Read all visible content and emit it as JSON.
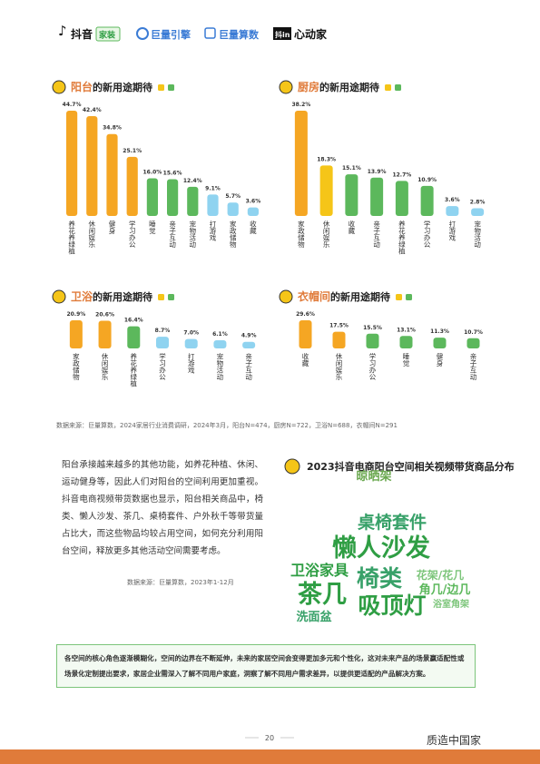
{
  "header": {
    "logos": [
      "抖音",
      "家装",
      "巨量引擎",
      "巨量算数",
      "抖in",
      "心动家"
    ]
  },
  "chart_data": [
    {
      "type": "bar",
      "title_highlight": "阳台",
      "title": "的新用途期待",
      "categories": [
        "养花养绿植",
        "休闲娱乐",
        "健身",
        "学习办公",
        "睡觉",
        "亲子互动",
        "宠物活动",
        "打游戏",
        "家政储物",
        "收藏"
      ],
      "values": [
        44.7,
        42.4,
        34.8,
        25.1,
        16.0,
        15.6,
        12.4,
        9.1,
        5.7,
        3.6
      ],
      "value_labels": [
        "44.7%",
        "42.4%",
        "34.8%",
        "25.1%",
        "16.0%",
        "15.6%",
        "12.4%",
        "9.1%",
        "5.7%",
        "3.6%"
      ],
      "colors": [
        "#f5a623",
        "#f5a623",
        "#f5a623",
        "#f5a623",
        "#5cb85c",
        "#5cb85c",
        "#5cb85c",
        "#8fd3f0",
        "#8fd3f0",
        "#8fd3f0"
      ]
    },
    {
      "type": "bar",
      "title_highlight": "厨房",
      "title": "的新用途期待",
      "categories": [
        "家政储物",
        "休闲娱乐",
        "收藏",
        "亲子互动",
        "养花养绿植",
        "学习办公",
        "打游戏",
        "宠物活动"
      ],
      "values": [
        38.2,
        18.3,
        15.1,
        13.9,
        12.7,
        10.9,
        3.6,
        2.8
      ],
      "value_labels": [
        "38.2%",
        "18.3%",
        "15.1%",
        "13.9%",
        "12.7%",
        "10.9%",
        "3.6%",
        "2.8%"
      ],
      "colors": [
        "#f5a623",
        "#f5c518",
        "#5cb85c",
        "#5cb85c",
        "#5cb85c",
        "#5cb85c",
        "#8fd3f0",
        "#8fd3f0"
      ]
    },
    {
      "type": "bar",
      "title_highlight": "卫浴",
      "title": "的新用途期待",
      "categories": [
        "家政储物",
        "休闲娱乐",
        "养花养绿植",
        "学习办公",
        "打游戏",
        "宠物活动",
        "亲子互动"
      ],
      "values": [
        20.9,
        20.6,
        16.4,
        8.7,
        7.0,
        6.1,
        4.9
      ],
      "value_labels": [
        "20.9%",
        "20.6%",
        "16.4%",
        "8.7%",
        "7.0%",
        "6.1%",
        "4.9%"
      ],
      "colors": [
        "#f5a623",
        "#f5a623",
        "#5cb85c",
        "#8fd3f0",
        "#8fd3f0",
        "#8fd3f0",
        "#8fd3f0"
      ]
    },
    {
      "type": "bar",
      "title_highlight": "衣帽间",
      "title": "的新用途期待",
      "categories": [
        "收藏",
        "休闲娱乐",
        "学习办公",
        "睡觉",
        "健身",
        "亲子互动"
      ],
      "values": [
        29.6,
        17.5,
        15.5,
        13.1,
        11.3,
        10.7
      ],
      "value_labels": [
        "29.6%",
        "17.5%",
        "15.5%",
        "13.1%",
        "11.3%",
        "10.7%"
      ],
      "colors": [
        "#f5a623",
        "#f5a623",
        "#5cb85c",
        "#5cb85c",
        "#5cb85c",
        "#5cb85c"
      ]
    }
  ],
  "source_note": "数据来源：巨量算数，2024家居行业消费调研，2024年3月，阳台N=474，厨房N=722，卫浴N=688，衣帽间N=291",
  "paragraph": "阳台承接越来越多的其他功能，如养花种植、休闲、运动健身等，因此人们对阳台的空间利用更加重视。抖音电商视频带货数据也显示，阳台相关商品中，椅类、懒人沙发、茶几、桌椅套件、户外秋千等带货量占比大，而这些物品均较占用空间，如何充分利用阳台空间，释放更多其他活动空间需要考虑。",
  "paragraph_source": "数据来源：巨量算数，2023年1-12月",
  "wordcloud": {
    "title": "2023抖音电商阳台空间相关视频带货商品分布",
    "words": [
      "晾晒架",
      "桌椅套件",
      "懒人沙发",
      "卫浴家具",
      "椅类",
      "花架/花几",
      "茶几",
      "角几/边几",
      "浴室角架",
      "洗面盆",
      "吸顶灯"
    ]
  },
  "conclusion": "各空间的核心角色逐渐模糊化，空间的边界在不断延伸，未来的家居空间会变得更加多元和个性化，这对未来产品的场景赢适配性或场景化定制提出要求，家居企业需深入了解不同用户家庭，洞察了解不同用户需求差异，以提供更适配的产品解决方案。",
  "page_number": "20",
  "footer_logo": "质造中国家"
}
